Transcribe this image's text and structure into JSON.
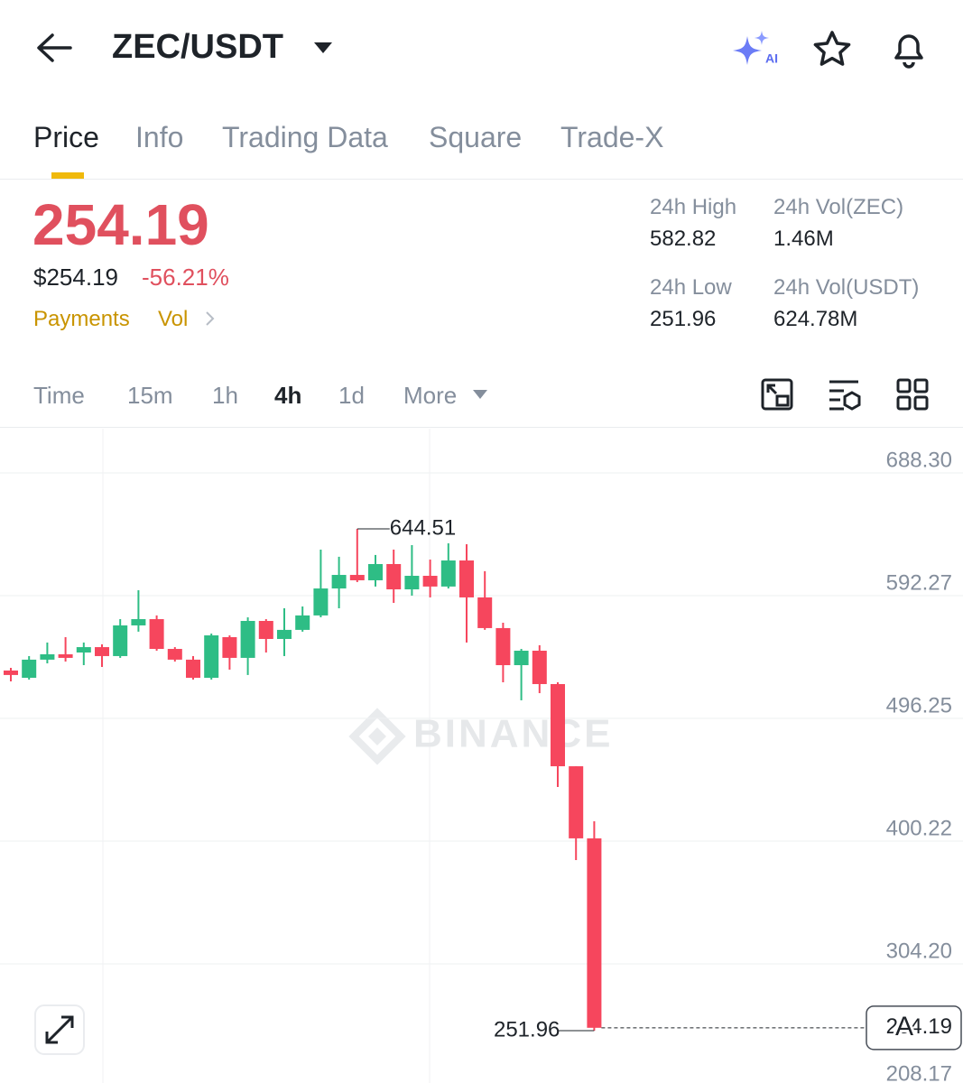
{
  "header": {
    "pair": "ZEC/USDT",
    "ai": "AI"
  },
  "tabs": [
    "Price",
    "Info",
    "Trading Data",
    "Square",
    "Trade-X"
  ],
  "price": {
    "last": "254.19",
    "usd": "$254.19",
    "change": "-56.21%",
    "tags": [
      "Payments",
      "Vol"
    ]
  },
  "stats": [
    {
      "label": "24h High",
      "value": "582.82"
    },
    {
      "label": "24h Vol(ZEC)",
      "value": "1.46M"
    },
    {
      "label": "24h Low",
      "value": "251.96"
    },
    {
      "label": "24h Vol(USDT)",
      "value": "624.78M"
    }
  ],
  "intervals": [
    "Time",
    "15m",
    "1h",
    "4h",
    "1d",
    "More"
  ],
  "overlay_button": "A",
  "chart_data": {
    "type": "candlestick",
    "watermark": "BINANCE",
    "up_color": "#2ebd85",
    "down_color": "#f6465d",
    "open": [
      533.7,
      528.0,
      542.2,
      546.4,
      547.8,
      552.0,
      545.0,
      569.0,
      573.9,
      550.6,
      542.2,
      528.0,
      559.8,
      543.6,
      572.5,
      558.4,
      565.5,
      576.8,
      597.9,
      608.5,
      604.3,
      617.0,
      597.2,
      607.8,
      599.4,
      619.8,
      590.9,
      566.9,
      537.9,
      549.2,
      523.1,
      458.8,
      402.4
    ],
    "high": [
      535.8,
      545.0,
      555.6,
      559.8,
      555.6,
      554.2,
      573.9,
      596.5,
      576.8,
      552.0,
      545.0,
      562.6,
      561.2,
      575.3,
      573.9,
      582.4,
      583.8,
      628.3,
      622.7,
      644.51,
      624.1,
      628.3,
      631.8,
      620.5,
      633.2,
      632.5,
      611.4,
      571.1,
      550.6,
      553.5,
      524.5,
      458.8,
      415.8
    ],
    "low": [
      525.2,
      526.6,
      539.3,
      540.7,
      537.9,
      536.5,
      543.6,
      564.1,
      549.2,
      540.7,
      526.6,
      526.6,
      534.4,
      530.2,
      547.8,
      545.0,
      564.1,
      575.3,
      582.4,
      602.9,
      599.4,
      586.6,
      592.3,
      590.9,
      597.9,
      555.6,
      565.5,
      524.5,
      510.4,
      516.0,
      442.6,
      385.4,
      251.96
    ],
    "close": [
      530.2,
      542.2,
      546.4,
      543.6,
      552.0,
      545.0,
      569.0,
      573.9,
      550.6,
      542.2,
      528.0,
      561.2,
      543.6,
      572.5,
      558.4,
      565.5,
      576.8,
      597.9,
      608.5,
      604.3,
      617.0,
      597.2,
      607.8,
      599.4,
      619.8,
      590.9,
      566.9,
      537.9,
      549.2,
      523.1,
      458.8,
      402.4,
      254.19
    ],
    "ylim": [
      211.0,
      722.9
    ],
    "yticks": [
      {
        "value": 688.3,
        "label": "688.30"
      },
      592.27,
      496.25,
      400.22,
      {
        "value": 304.2,
        "label": "304.20"
      },
      208.17
    ],
    "grid": true
  }
}
